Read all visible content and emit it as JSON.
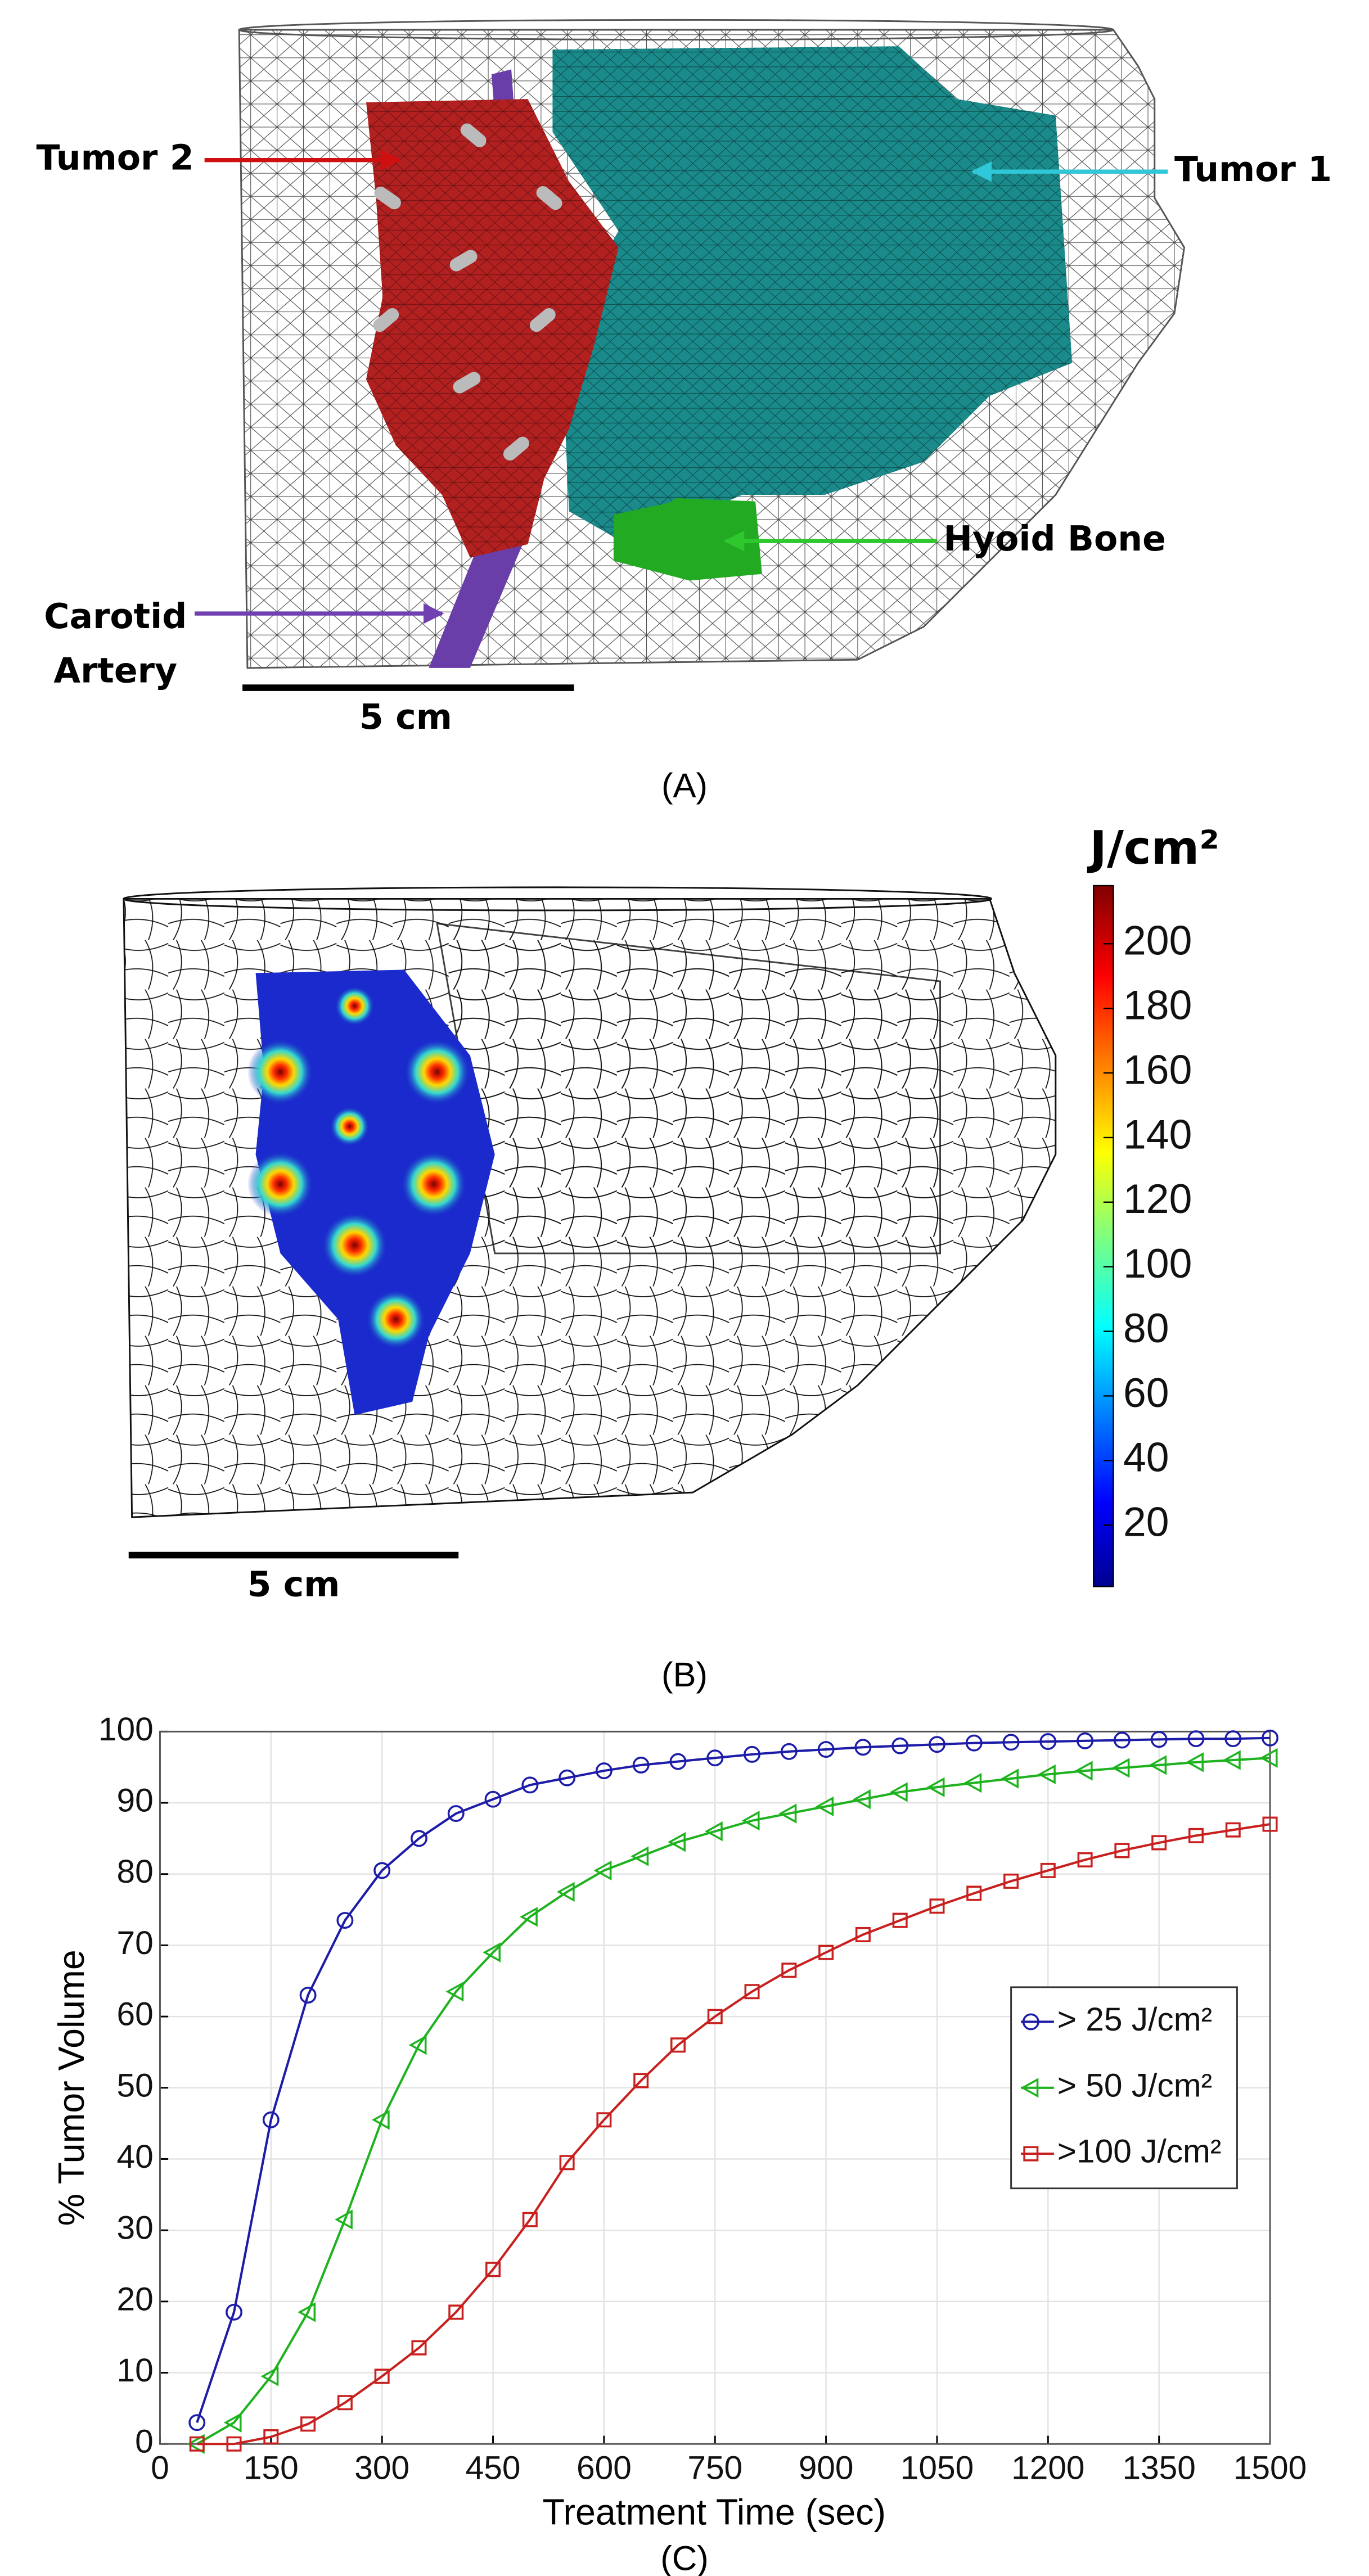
{
  "panel_a": {
    "labels": {
      "tumor_2": "Tumor 2",
      "tumor_1": "Tumor 1",
      "hyoid_bone": "Hyoid Bone",
      "carotid_artery": [
        "Carotid",
        "Artery"
      ]
    },
    "scale_bar": "5 cm",
    "caption": "(A)"
  },
  "panel_b": {
    "colorbar": {
      "title": "J/cm²",
      "lim": [
        1,
        218
      ],
      "ticks": [
        20,
        40,
        60,
        80,
        100,
        120,
        140,
        160,
        180,
        200
      ]
    },
    "scale_bar": "5 cm",
    "caption": "(B)"
  },
  "chart_data": {
    "type": "line",
    "caption": "(C)",
    "x_label": "Treatment Time (sec)",
    "y_label": "% Tumor Volume",
    "x": [
      50,
      100,
      150,
      200,
      250,
      300,
      350,
      400,
      450,
      500,
      550,
      600,
      650,
      700,
      750,
      800,
      850,
      900,
      950,
      1000,
      1050,
      1100,
      1150,
      1200,
      1250,
      1300,
      1350,
      1400,
      1450,
      1500
    ],
    "series": [
      {
        "name": "> 25 J/cm²",
        "color": "#1c1ca8",
        "marker": "circle",
        "values": [
          3,
          18.5,
          45.5,
          63,
          73.5,
          80.5,
          85,
          88.5,
          90.5,
          92.5,
          93.5,
          94.5,
          95.3,
          95.8,
          96.3,
          96.8,
          97.2,
          97.5,
          97.8,
          98,
          98.2,
          98.4,
          98.5,
          98.6,
          98.7,
          98.8,
          98.9,
          99,
          99,
          99.1
        ]
      },
      {
        "name": "> 50 J/cm²",
        "color": "#1fb21f",
        "marker": "triangle-left",
        "values": [
          0,
          3,
          9.5,
          18.5,
          31.5,
          45.5,
          56,
          63.5,
          69,
          74,
          77.5,
          80.5,
          82.5,
          84.5,
          86,
          87.5,
          88.5,
          89.5,
          90.5,
          91.5,
          92.2,
          92.8,
          93.4,
          94,
          94.5,
          94.9,
          95.3,
          95.7,
          96,
          96.3
        ]
      },
      {
        "name": ">100 J/cm²",
        "color": "#c8201e",
        "marker": "square",
        "values": [
          0,
          0,
          1,
          2.8,
          5.8,
          9.5,
          13.5,
          18.5,
          24.5,
          31.5,
          39.5,
          45.5,
          51,
          56,
          60,
          63.5,
          66.5,
          69,
          71.5,
          73.5,
          75.5,
          77.3,
          79,
          80.5,
          82,
          83.3,
          84.4,
          85.4,
          86.2,
          87
        ]
      }
    ],
    "xlim": [
      0,
      1500
    ],
    "xticks": [
      0,
      150,
      300,
      450,
      600,
      750,
      900,
      1050,
      1200,
      1350,
      1500
    ],
    "ylim": [
      0,
      100
    ],
    "yticks": [
      0,
      10,
      20,
      30,
      40,
      50,
      60,
      70,
      80,
      90,
      100
    ],
    "grid": true,
    "legend": "center right"
  }
}
